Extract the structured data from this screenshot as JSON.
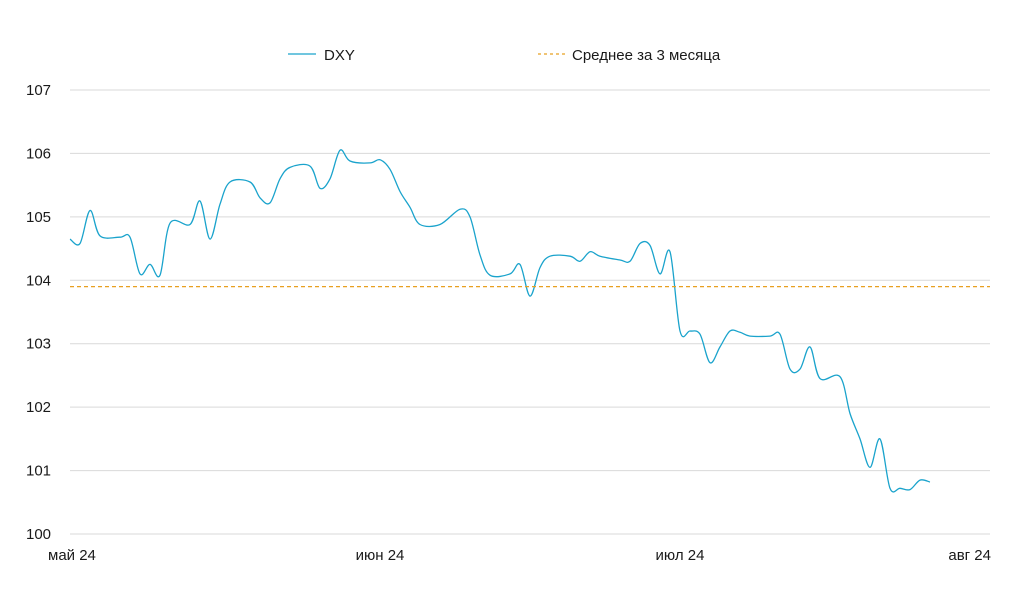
{
  "chart_data": {
    "type": "line",
    "title": "",
    "xlabel": "",
    "ylabel": "",
    "ylim": [
      100,
      107
    ],
    "yticks": [
      100,
      101,
      102,
      103,
      104,
      105,
      106,
      107
    ],
    "xlim": [
      "2024-05-01",
      "2024-08-01"
    ],
    "xticks": [
      {
        "x": "2024-05-01",
        "label": "май 24"
      },
      {
        "x": "2024-06-01",
        "label": "июн 24"
      },
      {
        "x": "2024-07-01",
        "label": "июл 24"
      },
      {
        "x": "2024-08-01",
        "label": "авг 24"
      }
    ],
    "grid": true,
    "legend_position": "top-center",
    "series": [
      {
        "name": "DXY",
        "style": "solid",
        "color": "#1aa3cc",
        "points": [
          [
            "2024-05-01",
            104.65
          ],
          [
            "2024-05-02",
            104.58
          ],
          [
            "2024-05-03",
            105.1
          ],
          [
            "2024-05-04",
            104.7
          ],
          [
            "2024-05-06",
            104.68
          ],
          [
            "2024-05-07",
            104.68
          ],
          [
            "2024-05-08",
            104.1
          ],
          [
            "2024-05-09",
            104.25
          ],
          [
            "2024-05-10",
            104.08
          ],
          [
            "2024-05-11",
            104.9
          ],
          [
            "2024-05-13",
            104.88
          ],
          [
            "2024-05-14",
            105.25
          ],
          [
            "2024-05-15",
            104.65
          ],
          [
            "2024-05-16",
            105.2
          ],
          [
            "2024-05-17",
            105.55
          ],
          [
            "2024-05-19",
            105.55
          ],
          [
            "2024-05-20",
            105.3
          ],
          [
            "2024-05-21",
            105.22
          ],
          [
            "2024-05-22",
            105.6
          ],
          [
            "2024-05-23",
            105.78
          ],
          [
            "2024-05-25",
            105.8
          ],
          [
            "2024-05-26",
            105.45
          ],
          [
            "2024-05-27",
            105.6
          ],
          [
            "2024-05-28",
            106.05
          ],
          [
            "2024-05-29",
            105.88
          ],
          [
            "2024-05-31",
            105.85
          ],
          [
            "2024-06-01",
            105.9
          ],
          [
            "2024-06-02",
            105.75
          ],
          [
            "2024-06-03",
            105.4
          ],
          [
            "2024-06-04",
            105.15
          ],
          [
            "2024-06-05",
            104.88
          ],
          [
            "2024-06-07",
            104.88
          ],
          [
            "2024-06-09",
            105.12
          ],
          [
            "2024-06-10",
            105.0
          ],
          [
            "2024-06-11",
            104.4
          ],
          [
            "2024-06-12",
            104.08
          ],
          [
            "2024-06-14",
            104.1
          ],
          [
            "2024-06-15",
            104.25
          ],
          [
            "2024-06-16",
            103.75
          ],
          [
            "2024-06-17",
            104.2
          ],
          [
            "2024-06-18",
            104.38
          ],
          [
            "2024-06-20",
            104.38
          ],
          [
            "2024-06-21",
            104.3
          ],
          [
            "2024-06-22",
            104.45
          ],
          [
            "2024-06-23",
            104.38
          ],
          [
            "2024-06-25",
            104.32
          ],
          [
            "2024-06-26",
            104.3
          ],
          [
            "2024-06-27",
            104.58
          ],
          [
            "2024-06-28",
            104.55
          ],
          [
            "2024-06-29",
            104.1
          ],
          [
            "2024-06-30",
            104.45
          ],
          [
            "2024-07-01",
            103.2
          ],
          [
            "2024-07-02",
            103.2
          ],
          [
            "2024-07-03",
            103.15
          ],
          [
            "2024-07-04",
            102.7
          ],
          [
            "2024-07-05",
            102.95
          ],
          [
            "2024-07-06",
            103.2
          ],
          [
            "2024-07-07",
            103.18
          ],
          [
            "2024-07-08",
            103.12
          ],
          [
            "2024-07-10",
            103.12
          ],
          [
            "2024-07-11",
            103.15
          ],
          [
            "2024-07-12",
            102.6
          ],
          [
            "2024-07-13",
            102.6
          ],
          [
            "2024-07-14",
            102.95
          ],
          [
            "2024-07-15",
            102.45
          ],
          [
            "2024-07-17",
            102.48
          ],
          [
            "2024-07-18",
            101.9
          ],
          [
            "2024-07-19",
            101.5
          ],
          [
            "2024-07-20",
            101.05
          ],
          [
            "2024-07-21",
            101.5
          ],
          [
            "2024-07-22",
            100.72
          ],
          [
            "2024-07-23",
            100.72
          ],
          [
            "2024-07-24",
            100.7
          ],
          [
            "2024-07-25",
            100.85
          ],
          [
            "2024-07-26",
            100.82
          ]
        ]
      },
      {
        "name": "Среднее за 3 месяца",
        "style": "dashed",
        "color": "#e8a020",
        "points": [
          [
            "2024-05-01",
            103.9
          ],
          [
            "2024-08-01",
            103.9
          ]
        ]
      }
    ]
  }
}
